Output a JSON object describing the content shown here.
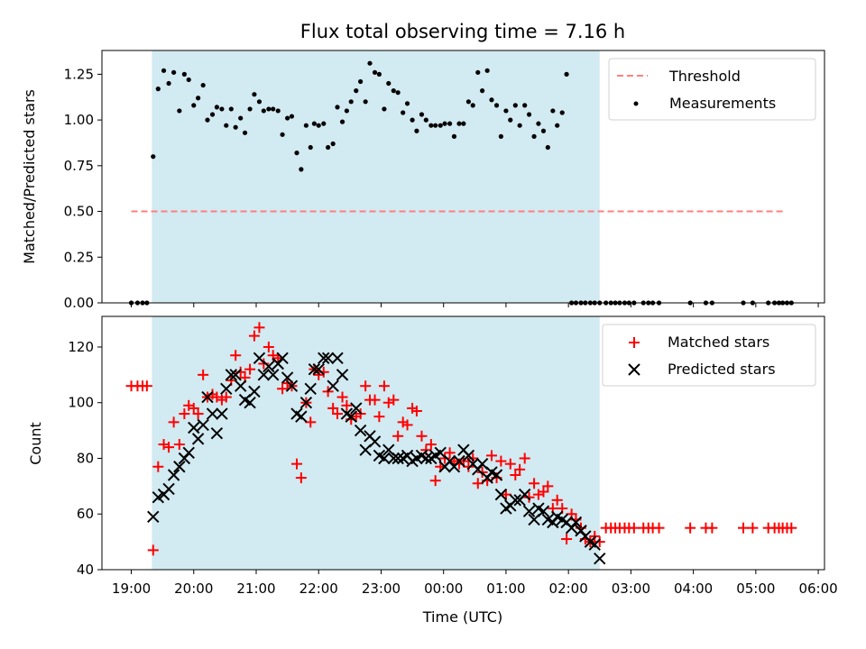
{
  "chart_data": [
    {
      "type": "scatter",
      "title": "Flux total observing time = 7.16 h",
      "xlabel": "",
      "ylabel": "Matched/Predicted stars",
      "ylim": [
        0,
        1.38
      ],
      "yticks": [
        "0.00",
        "0.25",
        "0.50",
        "0.75",
        "1.00",
        "1.25"
      ],
      "xlim_hours": [
        18.53,
        30.1
      ],
      "shaded_interval_hours": [
        19.33,
        26.5
      ],
      "shade_color": "#add8e6",
      "legend_position": "top-right",
      "series": [
        {
          "name": "Threshold",
          "kind": "dashed-line",
          "color": "#ff7f7f",
          "x": [
            19.0,
            29.48
          ],
          "y": [
            0.5,
            0.5
          ]
        },
        {
          "name": "Measurements",
          "kind": "dots",
          "color": "#000000",
          "x": [
            19.0,
            19.1,
            19.18,
            19.25,
            19.35,
            19.43,
            19.52,
            19.6,
            19.68,
            19.77,
            19.85,
            19.92,
            20.0,
            20.07,
            20.15,
            20.22,
            20.3,
            20.37,
            20.45,
            20.52,
            20.6,
            20.67,
            20.75,
            20.82,
            20.9,
            20.97,
            21.05,
            21.12,
            21.2,
            21.27,
            21.35,
            21.42,
            21.5,
            21.57,
            21.65,
            21.72,
            21.8,
            21.87,
            21.93,
            22.0,
            22.08,
            22.15,
            22.23,
            22.3,
            22.38,
            22.45,
            22.52,
            22.6,
            22.67,
            22.75,
            22.82,
            22.9,
            22.97,
            23.05,
            23.12,
            23.2,
            23.27,
            23.35,
            23.42,
            23.5,
            23.57,
            23.65,
            23.72,
            23.8,
            23.87,
            23.95,
            24.02,
            24.1,
            24.17,
            24.25,
            24.32,
            24.4,
            24.47,
            24.55,
            24.62,
            24.7,
            24.77,
            24.85,
            24.92,
            25.0,
            25.07,
            25.15,
            25.22,
            25.3,
            25.37,
            25.45,
            25.52,
            25.6,
            25.67,
            25.75,
            25.82,
            25.9,
            25.97,
            26.05,
            26.12,
            26.2,
            26.27,
            26.35,
            26.42,
            26.5,
            26.6,
            26.68,
            26.75,
            26.82,
            26.9,
            26.97,
            27.05,
            27.2,
            27.28,
            27.35,
            27.45,
            27.95,
            28.2,
            28.3,
            28.8,
            28.95,
            29.2,
            29.3,
            29.37,
            29.43,
            29.5,
            29.57
          ],
          "y": [
            0.0,
            0.0,
            0.0,
            0.0,
            0.8,
            1.17,
            1.27,
            1.2,
            1.26,
            1.05,
            1.25,
            1.22,
            1.08,
            1.12,
            1.19,
            1.0,
            1.03,
            1.07,
            1.06,
            0.97,
            1.06,
            0.96,
            1.01,
            0.93,
            1.06,
            1.14,
            1.1,
            1.05,
            1.06,
            1.06,
            1.05,
            0.92,
            1.01,
            1.02,
            0.82,
            0.73,
            0.97,
            0.85,
            0.98,
            0.97,
            0.98,
            0.85,
            0.87,
            1.07,
            0.99,
            1.05,
            1.1,
            1.16,
            1.21,
            1.1,
            1.31,
            1.26,
            1.25,
            1.06,
            1.2,
            1.16,
            1.15,
            1.04,
            1.09,
            1.0,
            0.94,
            1.03,
            1.0,
            0.97,
            0.97,
            0.97,
            0.98,
            0.98,
            0.91,
            0.98,
            0.98,
            1.1,
            1.08,
            1.26,
            1.16,
            1.27,
            1.11,
            1.08,
            0.91,
            1.05,
            1.0,
            1.08,
            0.97,
            1.08,
            1.03,
            0.91,
            0.98,
            0.94,
            0.85,
            1.05,
            0.97,
            1.04,
            1.25,
            0.0,
            0.0,
            0.0,
            0.0,
            0.0,
            0.0,
            0.0,
            0.0,
            0.0,
            0.0,
            0.0,
            0.0,
            0.0,
            0.0,
            0.0,
            0.0,
            0.0,
            0.0,
            0.0,
            0.0,
            0.0,
            0.0,
            0.0,
            0.0,
            0.0,
            0.0,
            0.0,
            0.0,
            0.0
          ]
        }
      ]
    },
    {
      "type": "scatter",
      "title": "",
      "xlabel": "Time (UTC)",
      "ylabel": "Count",
      "ylim": [
        40,
        131
      ],
      "yticks": [
        "40",
        "60",
        "80",
        "100",
        "120"
      ],
      "xtick_labels": [
        "19:00",
        "20:00",
        "21:00",
        "22:00",
        "23:00",
        "00:00",
        "01:00",
        "02:00",
        "03:00",
        "04:00",
        "05:00",
        "06:00"
      ],
      "xlim_hours": [
        18.53,
        30.1
      ],
      "shaded_interval_hours": [
        19.33,
        26.5
      ],
      "shade_color": "#add8e6",
      "legend_position": "top-right",
      "series": [
        {
          "name": "Matched stars",
          "marker": "plus",
          "color": "#ff0000",
          "x": [
            19.0,
            19.1,
            19.18,
            19.25,
            19.35,
            19.43,
            19.52,
            19.6,
            19.68,
            19.77,
            19.85,
            19.92,
            20.0,
            20.07,
            20.15,
            20.22,
            20.3,
            20.37,
            20.45,
            20.52,
            20.6,
            20.67,
            20.75,
            20.82,
            20.9,
            20.97,
            21.05,
            21.12,
            21.2,
            21.27,
            21.35,
            21.42,
            21.5,
            21.57,
            21.65,
            21.72,
            21.8,
            21.87,
            21.93,
            22.0,
            22.08,
            22.15,
            22.23,
            22.3,
            22.38,
            22.45,
            22.52,
            22.6,
            22.67,
            22.75,
            22.82,
            22.9,
            22.97,
            23.05,
            23.12,
            23.2,
            23.27,
            23.35,
            23.42,
            23.5,
            23.57,
            23.65,
            23.72,
            23.8,
            23.87,
            23.95,
            24.02,
            24.1,
            24.17,
            24.25,
            24.32,
            24.4,
            24.47,
            24.55,
            24.62,
            24.7,
            24.77,
            24.85,
            24.92,
            25.0,
            25.07,
            25.15,
            25.22,
            25.3,
            25.37,
            25.45,
            25.52,
            25.6,
            25.67,
            25.75,
            25.82,
            25.9,
            25.97,
            26.05,
            26.12,
            26.2,
            26.27,
            26.35,
            26.42,
            26.5,
            26.6,
            26.68,
            26.75,
            26.82,
            26.9,
            26.97,
            27.05,
            27.2,
            27.28,
            27.35,
            27.45,
            27.95,
            28.2,
            28.3,
            28.8,
            28.95,
            29.2,
            29.3,
            29.37,
            29.43,
            29.5,
            29.57
          ],
          "y": [
            106,
            106,
            106,
            106,
            47,
            77,
            85,
            84,
            93,
            85,
            96,
            99,
            98,
            96,
            110,
            102,
            103,
            102,
            101,
            102,
            108,
            117,
            111,
            109,
            112,
            124,
            127,
            114,
            120,
            117,
            116,
            105,
            107,
            106,
            78,
            73,
            100,
            93,
            112,
            110,
            111,
            104,
            98,
            96,
            102,
            99,
            94,
            95,
            96,
            106,
            101,
            101,
            95,
            106,
            100,
            101,
            88,
            93,
            92,
            98,
            97,
            88,
            83,
            85,
            72,
            77,
            80,
            82,
            79,
            78,
            79,
            77,
            80,
            71,
            75,
            72,
            81,
            73,
            79,
            67,
            78,
            74,
            76,
            80,
            66,
            71,
            67,
            68,
            70,
            62,
            65,
            62,
            51,
            60,
            58,
            55,
            51,
            50,
            52,
            50,
            55,
            55,
            55,
            55,
            55,
            55,
            55,
            55,
            55,
            55,
            55,
            55,
            55,
            55,
            55,
            55,
            55,
            55,
            55,
            55,
            55,
            55
          ]
        },
        {
          "name": "Predicted stars",
          "marker": "cross",
          "color": "#000000",
          "x": [
            19.35,
            19.43,
            19.52,
            19.6,
            19.68,
            19.77,
            19.85,
            19.92,
            20.0,
            20.07,
            20.15,
            20.22,
            20.3,
            20.37,
            20.45,
            20.52,
            20.6,
            20.67,
            20.75,
            20.82,
            20.9,
            20.97,
            21.05,
            21.12,
            21.2,
            21.27,
            21.35,
            21.42,
            21.5,
            21.57,
            21.65,
            21.72,
            21.8,
            21.87,
            21.93,
            22.0,
            22.08,
            22.15,
            22.23,
            22.3,
            22.38,
            22.45,
            22.52,
            22.6,
            22.67,
            22.75,
            22.82,
            22.9,
            22.97,
            23.05,
            23.12,
            23.2,
            23.27,
            23.35,
            23.42,
            23.5,
            23.57,
            23.65,
            23.72,
            23.8,
            23.87,
            23.95,
            24.02,
            24.1,
            24.17,
            24.25,
            24.32,
            24.4,
            24.47,
            24.55,
            24.62,
            24.7,
            24.77,
            24.85,
            24.92,
            25.0,
            25.07,
            25.15,
            25.22,
            25.3,
            25.37,
            25.45,
            25.52,
            25.6,
            25.67,
            25.75,
            25.82,
            25.9,
            25.97,
            26.05,
            26.12,
            26.2,
            26.27,
            26.35,
            26.42,
            26.5
          ],
          "y": [
            59,
            66,
            67,
            69,
            74,
            77,
            80,
            82,
            91,
            87,
            92,
            102,
            96,
            89,
            96,
            105,
            110,
            110,
            106,
            101,
            100,
            104,
            116,
            110,
            113,
            110,
            114,
            116,
            109,
            106,
            96,
            95,
            100,
            105,
            112,
            112,
            116,
            116,
            106,
            116,
            110,
            96,
            95,
            98,
            90,
            83,
            88,
            86,
            81,
            80,
            83,
            80,
            80,
            80,
            81,
            79,
            80,
            81,
            80,
            80,
            81,
            82,
            77,
            79,
            77,
            79,
            83,
            81,
            78,
            76,
            78,
            73,
            75,
            74,
            67,
            62,
            63,
            65,
            65,
            67,
            61,
            58,
            62,
            61,
            58,
            57,
            59,
            58,
            57,
            55,
            57,
            54,
            52,
            50,
            49,
            44
          ]
        }
      ]
    }
  ]
}
